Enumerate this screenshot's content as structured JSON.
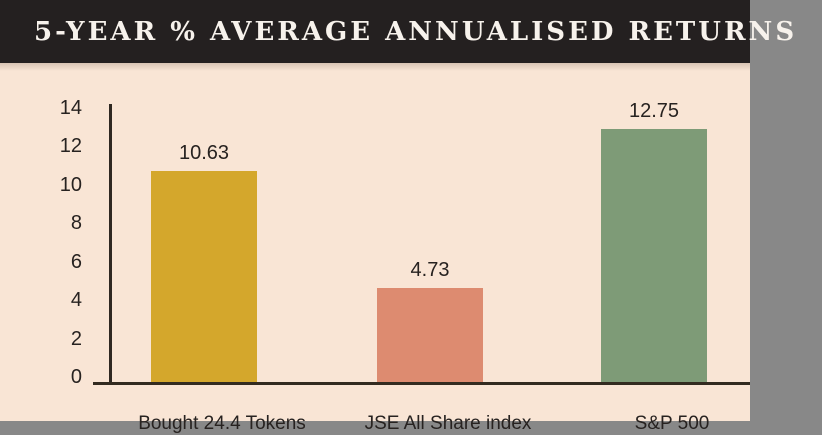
{
  "header": {
    "title": "5-YEAR % AVERAGE ANNUALISED RETURNS"
  },
  "chart_data": {
    "type": "bar",
    "title": "5-YEAR % AVERAGE ANNUALISED RETURNS",
    "categories": [
      "Bought 24.4 Tokens",
      "JSE All Share index",
      "S&P 500"
    ],
    "values": [
      10.63,
      4.73,
      12.75
    ],
    "value_labels": [
      "10.63",
      "4.73",
      "12.75"
    ],
    "bar_colors": [
      "#d4a72c",
      "#dd8b70",
      "#7e9b77"
    ],
    "y_ticks": [
      "0",
      "2",
      "4",
      "6",
      "8",
      "10",
      "12",
      "14"
    ],
    "ylim": [
      0,
      14
    ],
    "xlabel": "",
    "ylabel": "",
    "grid": false,
    "legend": false
  },
  "style": {
    "background_color": "#f9e5d5",
    "header_background": "#242020",
    "header_text_color": "#f7f2ec",
    "axis_color": "#2f2822",
    "label_color": "#272220"
  }
}
